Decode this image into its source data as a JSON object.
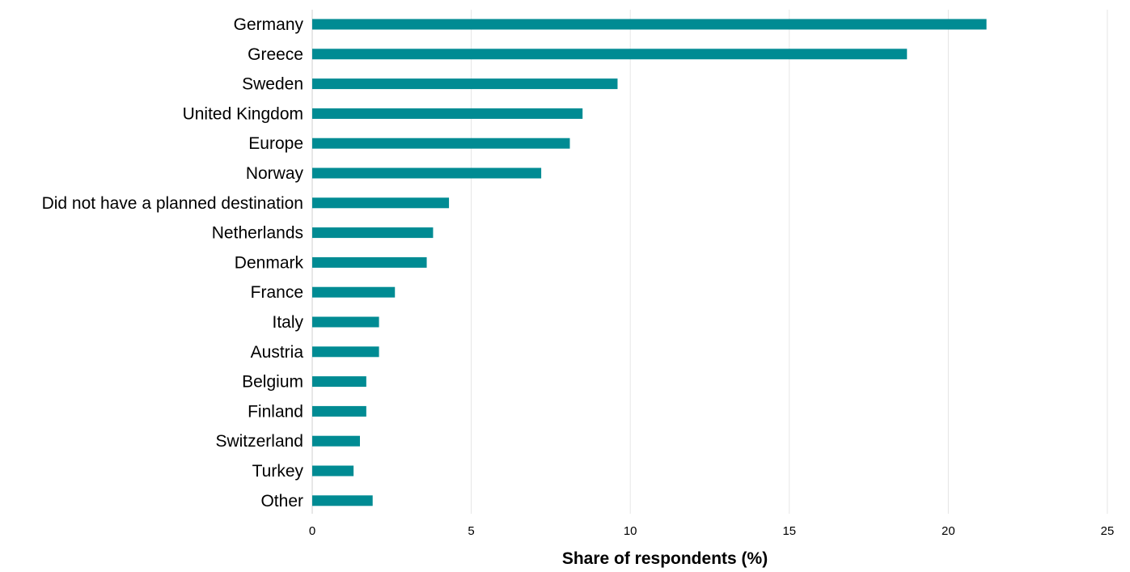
{
  "chart_data": {
    "type": "bar",
    "orientation": "horizontal",
    "categories": [
      "Germany",
      "Greece",
      "Sweden",
      "United Kingdom",
      "Europe",
      "Norway",
      "Did not have a planned destination",
      "Netherlands",
      "Denmark",
      "France",
      "Italy",
      "Austria",
      "Belgium",
      "Finland",
      "Switzerland",
      "Turkey",
      "Other"
    ],
    "values": [
      21.2,
      18.7,
      9.6,
      8.5,
      8.1,
      7.2,
      4.3,
      3.8,
      3.6,
      2.6,
      2.1,
      2.1,
      1.7,
      1.7,
      1.5,
      1.3,
      1.9
    ],
    "title": "",
    "xlabel": "Share of respondents (%)",
    "ylabel": "",
    "xlim": [
      0,
      25
    ],
    "xticks": [
      "0",
      "5",
      "10",
      "15",
      "20",
      "25"
    ],
    "grid": "vertical",
    "legend": "none",
    "bar_color": "#008b93",
    "grid_color": "#e6e6e6",
    "text_color": "#000000"
  }
}
